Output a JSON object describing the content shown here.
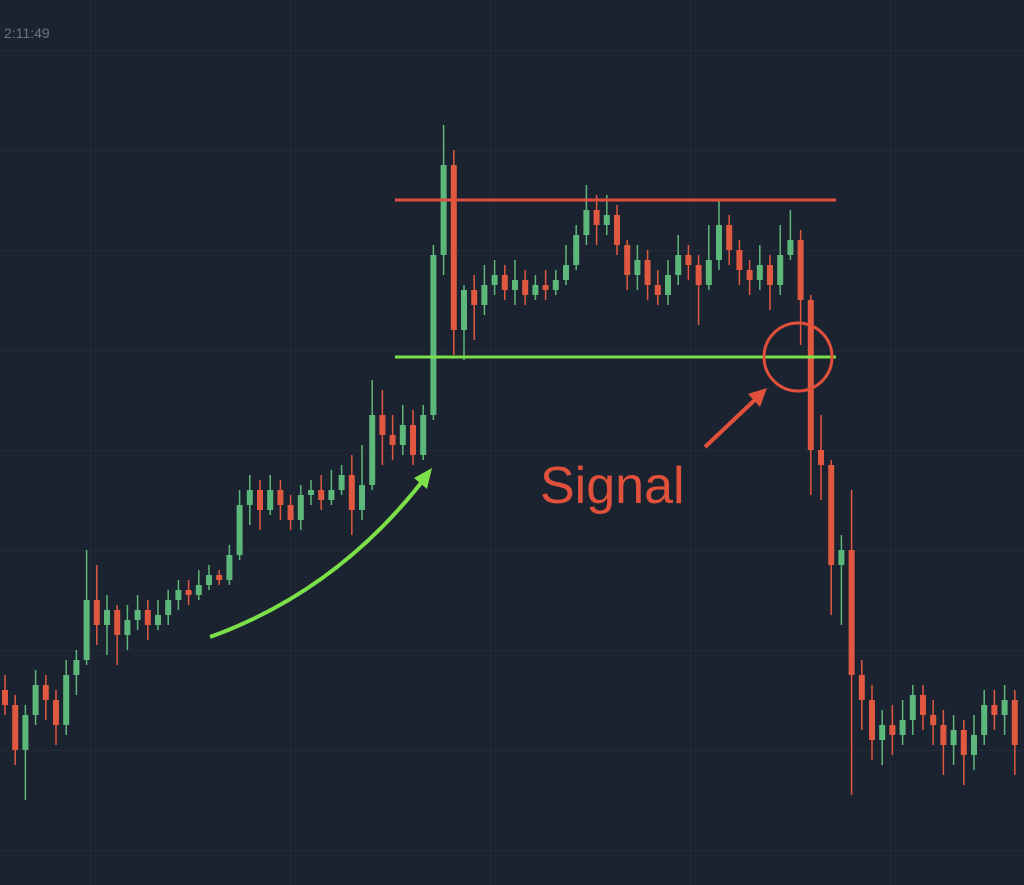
{
  "header": {
    "time": "2:11:49"
  },
  "chart_data": {
    "type": "candlestick",
    "ylim": [
      0,
      885
    ],
    "up_color": "#5cb87a",
    "down_color": "#e0583f",
    "open": [
      195,
      180,
      135,
      170,
      200,
      185,
      160,
      210,
      225,
      285,
      260,
      275,
      250,
      265,
      275,
      260,
      270,
      285,
      295,
      290,
      300,
      310,
      305,
      330,
      380,
      395,
      375,
      395,
      380,
      365,
      390,
      395,
      385,
      395,
      410,
      375,
      400,
      470,
      450,
      440,
      460,
      430,
      470,
      630,
      720,
      555,
      595,
      580,
      600,
      610,
      595,
      605,
      590,
      600,
      595,
      605,
      620,
      650,
      675,
      660,
      670,
      640,
      610,
      625,
      600,
      590,
      610,
      630,
      620,
      600,
      625,
      660,
      635,
      615,
      605,
      620,
      600,
      630,
      645,
      585,
      435,
      420,
      320,
      335,
      210,
      185,
      145,
      160,
      150,
      165,
      190,
      170,
      160,
      140,
      155,
      130,
      150,
      180,
      170,
      185
    ],
    "high": [
      210,
      190,
      180,
      215,
      210,
      195,
      225,
      235,
      335,
      320,
      290,
      280,
      280,
      290,
      285,
      285,
      295,
      305,
      305,
      315,
      320,
      315,
      340,
      395,
      410,
      405,
      410,
      405,
      390,
      400,
      405,
      410,
      415,
      420,
      430,
      440,
      505,
      495,
      470,
      480,
      475,
      480,
      640,
      760,
      735,
      600,
      610,
      620,
      625,
      620,
      625,
      615,
      610,
      615,
      615,
      640,
      660,
      700,
      690,
      690,
      680,
      645,
      640,
      635,
      615,
      625,
      650,
      640,
      630,
      660,
      685,
      670,
      645,
      625,
      640,
      630,
      660,
      675,
      655,
      590,
      470,
      425,
      350,
      395,
      225,
      200,
      175,
      180,
      185,
      200,
      200,
      185,
      175,
      170,
      165,
      170,
      195,
      195,
      200,
      195
    ],
    "low": [
      170,
      120,
      85,
      160,
      165,
      140,
      150,
      190,
      220,
      240,
      230,
      220,
      235,
      255,
      245,
      255,
      260,
      275,
      280,
      285,
      295,
      300,
      300,
      325,
      360,
      355,
      370,
      365,
      355,
      355,
      380,
      375,
      380,
      390,
      350,
      365,
      395,
      420,
      425,
      430,
      420,
      425,
      465,
      610,
      530,
      525,
      545,
      570,
      590,
      585,
      580,
      580,
      585,
      585,
      590,
      600,
      615,
      640,
      640,
      650,
      630,
      595,
      595,
      585,
      580,
      580,
      600,
      605,
      560,
      595,
      615,
      620,
      600,
      590,
      595,
      575,
      590,
      625,
      540,
      390,
      385,
      270,
      260,
      90,
      155,
      125,
      120,
      130,
      140,
      150,
      155,
      140,
      110,
      120,
      100,
      115,
      140,
      155,
      150,
      110
    ],
    "close": [
      180,
      135,
      170,
      200,
      185,
      160,
      210,
      225,
      285,
      260,
      275,
      250,
      265,
      275,
      260,
      270,
      285,
      295,
      290,
      300,
      310,
      305,
      330,
      380,
      395,
      375,
      395,
      380,
      365,
      390,
      395,
      385,
      395,
      410,
      375,
      400,
      470,
      450,
      440,
      460,
      430,
      470,
      630,
      720,
      555,
      595,
      580,
      600,
      610,
      595,
      605,
      590,
      600,
      595,
      605,
      620,
      650,
      675,
      660,
      670,
      640,
      610,
      625,
      600,
      590,
      610,
      630,
      620,
      600,
      625,
      660,
      635,
      615,
      605,
      620,
      600,
      630,
      645,
      585,
      435,
      420,
      320,
      335,
      210,
      185,
      145,
      160,
      150,
      165,
      190,
      170,
      160,
      140,
      155,
      130,
      150,
      180,
      170,
      185,
      140
    ],
    "annotations": {
      "label": "Signal",
      "resistance": 685,
      "support": 528,
      "resistance_color": "#e0503a",
      "support_color": "#7be04a"
    }
  }
}
